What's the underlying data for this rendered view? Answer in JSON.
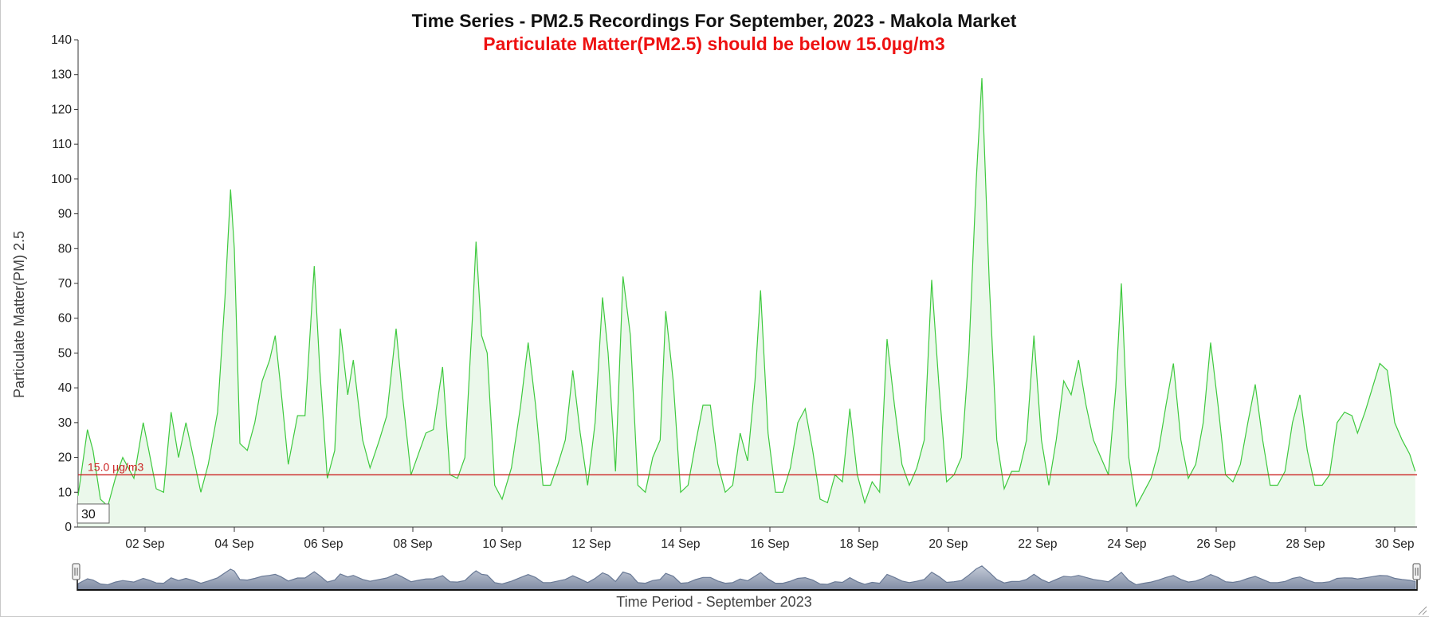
{
  "chart_data": {
    "type": "area",
    "title": "Time Series - PM2.5 Recordings For September, 2023 - Makola Market",
    "subtitle": "Particulate Matter(PM2.5) should be below 15.0µg/m3",
    "ylabel": "Particulate Matter(PM) 2.5",
    "xlabel": "Time Period - September 2023",
    "x_start": "2023-09-01",
    "x_end": "2023-09-30",
    "ylim": [
      0,
      140
    ],
    "yticks": [
      0,
      10,
      20,
      30,
      40,
      50,
      60,
      70,
      80,
      90,
      100,
      110,
      120,
      130,
      140
    ],
    "xticks": [
      {
        "date": "2023-09-02",
        "label": "02 Sep"
      },
      {
        "date": "2023-09-04",
        "label": "04 Sep"
      },
      {
        "date": "2023-09-06",
        "label": "06 Sep"
      },
      {
        "date": "2023-09-08",
        "label": "08 Sep"
      },
      {
        "date": "2023-09-10",
        "label": "10 Sep"
      },
      {
        "date": "2023-09-12",
        "label": "12 Sep"
      },
      {
        "date": "2023-09-14",
        "label": "14 Sep"
      },
      {
        "date": "2023-09-16",
        "label": "16 Sep"
      },
      {
        "date": "2023-09-18",
        "label": "18 Sep"
      },
      {
        "date": "2023-09-20",
        "label": "20 Sep"
      },
      {
        "date": "2023-09-22",
        "label": "22 Sep"
      },
      {
        "date": "2023-09-24",
        "label": "24 Sep"
      },
      {
        "date": "2023-09-26",
        "label": "26 Sep"
      },
      {
        "date": "2023-09-28",
        "label": "28 Sep"
      },
      {
        "date": "2023-09-30",
        "label": "30 Sep"
      }
    ],
    "threshold": {
      "value": 15.0,
      "label": "15.0 µg/m3",
      "color": "#cc2222"
    },
    "series": [
      {
        "color": "#3ec93e",
        "fill": "#ebf8eb",
        "points": [
          [
            "2023-09-01 00:00",
            9
          ],
          [
            "2023-09-01 05:00",
            28
          ],
          [
            "2023-09-01 08:00",
            22
          ],
          [
            "2023-09-01 12:00",
            8
          ],
          [
            "2023-09-01 16:00",
            6
          ],
          [
            "2023-09-01 20:00",
            14
          ],
          [
            "2023-09-02 00:00",
            20
          ],
          [
            "2023-09-02 06:00",
            14
          ],
          [
            "2023-09-02 11:00",
            30
          ],
          [
            "2023-09-02 14:00",
            22
          ],
          [
            "2023-09-02 18:00",
            11
          ],
          [
            "2023-09-02 22:00",
            10
          ],
          [
            "2023-09-03 02:00",
            33
          ],
          [
            "2023-09-03 06:00",
            20
          ],
          [
            "2023-09-03 10:00",
            30
          ],
          [
            "2023-09-03 14:00",
            20
          ],
          [
            "2023-09-03 18:00",
            10
          ],
          [
            "2023-09-03 22:00",
            18
          ],
          [
            "2023-09-04 03:00",
            33
          ],
          [
            "2023-09-04 07:00",
            66
          ],
          [
            "2023-09-04 10:00",
            97
          ],
          [
            "2023-09-04 12:00",
            80
          ],
          [
            "2023-09-04 15:00",
            24
          ],
          [
            "2023-09-04 19:00",
            22
          ],
          [
            "2023-09-04 23:00",
            30
          ],
          [
            "2023-09-05 03:00",
            42
          ],
          [
            "2023-09-05 07:00",
            48
          ],
          [
            "2023-09-05 10:00",
            55
          ],
          [
            "2023-09-05 13:00",
            40
          ],
          [
            "2023-09-05 17:00",
            18
          ],
          [
            "2023-09-05 22:00",
            32
          ],
          [
            "2023-09-06 02:00",
            32
          ],
          [
            "2023-09-06 07:00",
            75
          ],
          [
            "2023-09-06 10:00",
            45
          ],
          [
            "2023-09-06 14:00",
            14
          ],
          [
            "2023-09-06 18:00",
            22
          ],
          [
            "2023-09-06 21:00",
            57
          ],
          [
            "2023-09-07 01:00",
            38
          ],
          [
            "2023-09-07 04:00",
            48
          ],
          [
            "2023-09-07 09:00",
            25
          ],
          [
            "2023-09-07 13:00",
            17
          ],
          [
            "2023-09-07 18:00",
            25
          ],
          [
            "2023-09-07 22:00",
            32
          ],
          [
            "2023-09-08 03:00",
            57
          ],
          [
            "2023-09-08 06:00",
            40
          ],
          [
            "2023-09-08 11:00",
            15
          ],
          [
            "2023-09-08 15:00",
            21
          ],
          [
            "2023-09-08 19:00",
            27
          ],
          [
            "2023-09-08 23:00",
            28
          ],
          [
            "2023-09-09 04:00",
            46
          ],
          [
            "2023-09-09 08:00",
            15
          ],
          [
            "2023-09-09 12:00",
            14
          ],
          [
            "2023-09-09 16:00",
            20
          ],
          [
            "2023-09-09 20:00",
            60
          ],
          [
            "2023-09-09 22:00",
            82
          ],
          [
            "2023-09-10 01:00",
            55
          ],
          [
            "2023-09-10 04:00",
            50
          ],
          [
            "2023-09-10 08:00",
            12
          ],
          [
            "2023-09-10 12:00",
            8
          ],
          [
            "2023-09-10 17:00",
            17
          ],
          [
            "2023-09-10 22:00",
            35
          ],
          [
            "2023-09-11 02:00",
            53
          ],
          [
            "2023-09-11 06:00",
            35
          ],
          [
            "2023-09-11 10:00",
            12
          ],
          [
            "2023-09-11 14:00",
            12
          ],
          [
            "2023-09-11 18:00",
            18
          ],
          [
            "2023-09-11 22:00",
            25
          ],
          [
            "2023-09-12 02:00",
            45
          ],
          [
            "2023-09-12 06:00",
            27
          ],
          [
            "2023-09-12 10:00",
            12
          ],
          [
            "2023-09-12 14:00",
            30
          ],
          [
            "2023-09-12 18:00",
            66
          ],
          [
            "2023-09-12 21:00",
            50
          ],
          [
            "2023-09-13 01:00",
            16
          ],
          [
            "2023-09-13 05:00",
            72
          ],
          [
            "2023-09-13 09:00",
            55
          ],
          [
            "2023-09-13 13:00",
            12
          ],
          [
            "2023-09-13 17:00",
            10
          ],
          [
            "2023-09-13 21:00",
            20
          ],
          [
            "2023-09-14 01:00",
            25
          ],
          [
            "2023-09-14 04:00",
            62
          ],
          [
            "2023-09-14 08:00",
            42
          ],
          [
            "2023-09-14 12:00",
            10
          ],
          [
            "2023-09-14 16:00",
            12
          ],
          [
            "2023-09-14 20:00",
            24
          ],
          [
            "2023-09-15 00:00",
            35
          ],
          [
            "2023-09-15 04:00",
            35
          ],
          [
            "2023-09-15 08:00",
            18
          ],
          [
            "2023-09-15 12:00",
            10
          ],
          [
            "2023-09-15 16:00",
            12
          ],
          [
            "2023-09-15 20:00",
            27
          ],
          [
            "2023-09-16 00:00",
            19
          ],
          [
            "2023-09-16 04:00",
            42
          ],
          [
            "2023-09-16 07:00",
            68
          ],
          [
            "2023-09-16 11:00",
            27
          ],
          [
            "2023-09-16 15:00",
            10
          ],
          [
            "2023-09-16 19:00",
            10
          ],
          [
            "2023-09-16 23:00",
            17
          ],
          [
            "2023-09-17 03:00",
            30
          ],
          [
            "2023-09-17 07:00",
            34
          ],
          [
            "2023-09-17 11:00",
            22
          ],
          [
            "2023-09-17 15:00",
            8
          ],
          [
            "2023-09-17 19:00",
            7
          ],
          [
            "2023-09-17 23:00",
            15
          ],
          [
            "2023-09-18 03:00",
            13
          ],
          [
            "2023-09-18 07:00",
            34
          ],
          [
            "2023-09-18 11:00",
            15
          ],
          [
            "2023-09-18 15:00",
            7
          ],
          [
            "2023-09-18 19:00",
            13
          ],
          [
            "2023-09-18 23:00",
            10
          ],
          [
            "2023-09-19 03:00",
            54
          ],
          [
            "2023-09-19 07:00",
            35
          ],
          [
            "2023-09-19 11:00",
            18
          ],
          [
            "2023-09-19 15:00",
            12
          ],
          [
            "2023-09-19 19:00",
            17
          ],
          [
            "2023-09-19 23:00",
            25
          ],
          [
            "2023-09-20 03:00",
            71
          ],
          [
            "2023-09-20 07:00",
            40
          ],
          [
            "2023-09-20 11:00",
            13
          ],
          [
            "2023-09-20 15:00",
            15
          ],
          [
            "2023-09-20 19:00",
            20
          ],
          [
            "2023-09-20 23:00",
            50
          ],
          [
            "2023-09-21 03:00",
            100
          ],
          [
            "2023-09-21 06:00",
            129
          ],
          [
            "2023-09-21 10:00",
            70
          ],
          [
            "2023-09-21 14:00",
            25
          ],
          [
            "2023-09-21 18:00",
            11
          ],
          [
            "2023-09-21 22:00",
            16
          ],
          [
            "2023-09-22 02:00",
            16
          ],
          [
            "2023-09-22 06:00",
            25
          ],
          [
            "2023-09-22 10:00",
            55
          ],
          [
            "2023-09-22 14:00",
            25
          ],
          [
            "2023-09-22 18:00",
            12
          ],
          [
            "2023-09-22 22:00",
            25
          ],
          [
            "2023-09-23 02:00",
            42
          ],
          [
            "2023-09-23 06:00",
            38
          ],
          [
            "2023-09-23 10:00",
            48
          ],
          [
            "2023-09-23 14:00",
            35
          ],
          [
            "2023-09-23 18:00",
            25
          ],
          [
            "2023-09-23 22:00",
            20
          ],
          [
            "2023-09-24 02:00",
            15
          ],
          [
            "2023-09-24 06:00",
            40
          ],
          [
            "2023-09-24 09:00",
            70
          ],
          [
            "2023-09-24 13:00",
            20
          ],
          [
            "2023-09-24 17:00",
            6
          ],
          [
            "2023-09-24 21:00",
            10
          ],
          [
            "2023-09-25 01:00",
            14
          ],
          [
            "2023-09-25 05:00",
            22
          ],
          [
            "2023-09-25 09:00",
            35
          ],
          [
            "2023-09-25 13:00",
            47
          ],
          [
            "2023-09-25 17:00",
            25
          ],
          [
            "2023-09-25 21:00",
            14
          ],
          [
            "2023-09-26 01:00",
            18
          ],
          [
            "2023-09-26 05:00",
            30
          ],
          [
            "2023-09-26 09:00",
            53
          ],
          [
            "2023-09-26 13:00",
            35
          ],
          [
            "2023-09-26 17:00",
            15
          ],
          [
            "2023-09-26 21:00",
            13
          ],
          [
            "2023-09-27 01:00",
            18
          ],
          [
            "2023-09-27 05:00",
            30
          ],
          [
            "2023-09-27 09:00",
            41
          ],
          [
            "2023-09-27 13:00",
            25
          ],
          [
            "2023-09-27 17:00",
            12
          ],
          [
            "2023-09-27 21:00",
            12
          ],
          [
            "2023-09-28 01:00",
            16
          ],
          [
            "2023-09-28 05:00",
            30
          ],
          [
            "2023-09-28 09:00",
            38
          ],
          [
            "2023-09-28 13:00",
            22
          ],
          [
            "2023-09-28 17:00",
            12
          ],
          [
            "2023-09-28 21:00",
            12
          ],
          [
            "2023-09-29 01:00",
            15
          ],
          [
            "2023-09-29 05:00",
            30
          ],
          [
            "2023-09-29 09:00",
            33
          ],
          [
            "2023-09-29 13:00",
            32
          ],
          [
            "2023-09-29 16:00",
            27
          ],
          [
            "2023-09-29 20:00",
            33
          ],
          [
            "2023-09-30 00:00",
            40
          ],
          [
            "2023-09-30 04:00",
            47
          ],
          [
            "2023-09-30 08:00",
            45
          ],
          [
            "2023-09-30 12:00",
            30
          ],
          [
            "2023-09-30 16:00",
            25
          ],
          [
            "2023-09-30 20:00",
            21
          ],
          [
            "2023-09-30 23:00",
            16
          ]
        ]
      }
    ],
    "grid": false,
    "legend": "none"
  },
  "controls": {
    "window_input_value": "30"
  },
  "navigator": {
    "line_color": "#6a7a96",
    "fill_color": "#a8b3c6",
    "handle_left_icon": "grip-handle-icon",
    "handle_right_icon": "grip-handle-icon"
  }
}
